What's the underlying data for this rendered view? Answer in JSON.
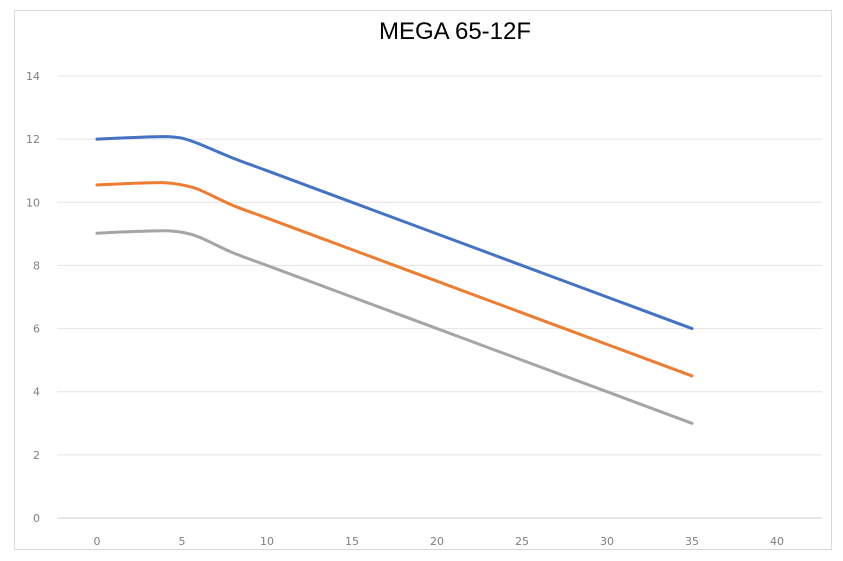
{
  "chart_data": {
    "type": "line",
    "title": "MEGA 65-12F",
    "xlabel": "",
    "ylabel": "",
    "xlim": [
      0,
      40
    ],
    "ylim": [
      0,
      14
    ],
    "x_ticks": [
      0,
      5,
      10,
      15,
      20,
      25,
      30,
      35,
      40
    ],
    "y_ticks": [
      0,
      2,
      4,
      6,
      8,
      10,
      12,
      14
    ],
    "grid": true,
    "legend": "none",
    "x": [
      0,
      2,
      4,
      5,
      6,
      8,
      10,
      15,
      20,
      25,
      30,
      35
    ],
    "series": [
      {
        "color": "#4472c4",
        "values": [
          12.0,
          12.05,
          12.08,
          12.03,
          11.85,
          11.4,
          11.0,
          10.0,
          9.0,
          8.0,
          7.0,
          6.0
        ]
      },
      {
        "color": "#ed7d31",
        "values": [
          10.55,
          10.6,
          10.62,
          10.55,
          10.4,
          9.9,
          9.5,
          8.5,
          7.5,
          6.5,
          5.5,
          4.5
        ]
      },
      {
        "color": "#a5a5a5",
        "values": [
          9.02,
          9.07,
          9.1,
          9.05,
          8.9,
          8.4,
          8.0,
          7.0,
          6.0,
          5.0,
          4.0,
          3.0
        ]
      }
    ]
  }
}
